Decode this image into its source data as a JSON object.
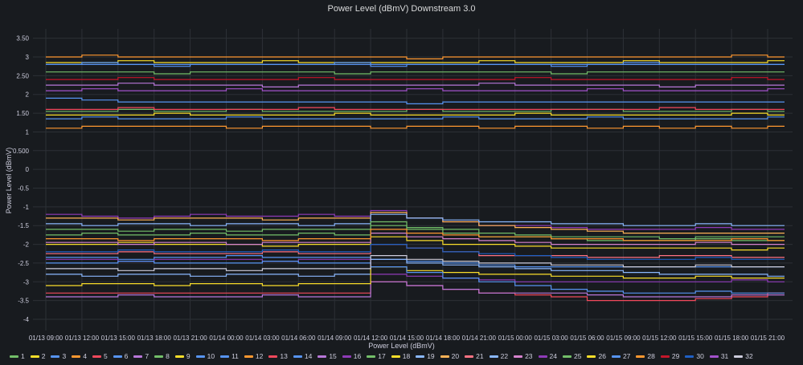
{
  "chart_data": {
    "type": "line",
    "title": "Power Level (dBmV) Downstream 3.0",
    "ylabel": "Power Level (dBmV)",
    "xlabel": "Power Level (dBmV)",
    "ylim": [
      -4.3,
      3.75
    ],
    "yticks": [
      "3.50",
      "3",
      "2.50",
      "2",
      "1.50",
      "1",
      "0.500",
      "0",
      "-0.5",
      "-1",
      "-1.5",
      "-2",
      "-2.5",
      "-3",
      "-3.5",
      "-4"
    ],
    "ytick_values": [
      3.5,
      3,
      2.5,
      2,
      1.5,
      1,
      0.5,
      0,
      -0.5,
      -1,
      -1.5,
      -2,
      -2.5,
      -3,
      -3.5,
      -4
    ],
    "xticks": [
      "01/13 09:00",
      "01/13 12:00",
      "01/13 15:00",
      "01/13 18:00",
      "01/13 21:00",
      "01/14 00:00",
      "01/14 03:00",
      "01/14 06:00",
      "01/14 09:00",
      "01/14 12:00",
      "01/14 15:00",
      "01/14 18:00",
      "01/14 21:00",
      "01/15 00:00",
      "01/15 03:00",
      "01/15 06:00",
      "01/15 09:00",
      "01/15 12:00",
      "01/15 15:00",
      "01/15 18:00",
      "01/15 21:00"
    ],
    "grid": true,
    "legend_position": "bottom",
    "series": [
      {
        "name": "1",
        "color": "#73bf69",
        "values": [
          1.55,
          1.55,
          1.6,
          1.55,
          1.55,
          1.6,
          1.55,
          1.55,
          1.55,
          1.55,
          1.6,
          1.55,
          1.55,
          1.55,
          1.6,
          1.6,
          1.55,
          1.55,
          1.55,
          1.6,
          1.55
        ]
      },
      {
        "name": "2",
        "color": "#fade2a",
        "values": [
          2.85,
          2.85,
          2.9,
          2.85,
          2.85,
          2.85,
          2.9,
          2.85,
          2.85,
          2.85,
          2.85,
          2.85,
          2.9,
          2.85,
          2.85,
          2.85,
          2.9,
          2.85,
          2.85,
          2.85,
          2.9
        ]
      },
      {
        "name": "3",
        "color": "#5794f2",
        "values": [
          2.8,
          2.8,
          2.8,
          2.75,
          2.8,
          2.8,
          2.8,
          2.8,
          2.8,
          2.75,
          2.8,
          2.8,
          2.8,
          2.8,
          2.75,
          2.8,
          2.8,
          2.8,
          2.8,
          2.8,
          2.8
        ]
      },
      {
        "name": "4",
        "color": "#ff9830",
        "values": [
          3.0,
          3.05,
          3.0,
          3.0,
          3.0,
          3.0,
          3.0,
          3.0,
          3.0,
          3.0,
          2.95,
          3.0,
          3.0,
          3.0,
          3.0,
          3.0,
          3.0,
          3.0,
          3.0,
          3.05,
          3.0
        ]
      },
      {
        "name": "5",
        "color": "#f2495c",
        "values": [
          1.6,
          1.6,
          1.65,
          1.6,
          1.6,
          1.6,
          1.6,
          1.65,
          1.6,
          1.6,
          1.6,
          1.6,
          1.6,
          1.6,
          1.6,
          1.6,
          1.6,
          1.65,
          1.6,
          1.6,
          1.6
        ]
      },
      {
        "name": "6",
        "color": "#5794f2",
        "values": [
          1.35,
          1.4,
          1.35,
          1.35,
          1.35,
          1.4,
          1.35,
          1.35,
          1.35,
          1.35,
          1.35,
          1.4,
          1.35,
          1.35,
          1.35,
          1.4,
          1.35,
          1.35,
          1.35,
          1.35,
          1.4
        ]
      },
      {
        "name": "7",
        "color": "#b877d9",
        "values": [
          2.25,
          2.25,
          2.3,
          2.25,
          2.25,
          2.25,
          2.2,
          2.25,
          2.25,
          2.25,
          2.25,
          2.25,
          2.3,
          2.25,
          2.25,
          2.25,
          2.25,
          2.2,
          2.25,
          2.25,
          2.25
        ]
      },
      {
        "name": "8",
        "color": "#73bf69",
        "values": [
          2.6,
          2.6,
          2.6,
          2.55,
          2.6,
          2.6,
          2.6,
          2.6,
          2.55,
          2.6,
          2.6,
          2.6,
          2.6,
          2.6,
          2.55,
          2.6,
          2.6,
          2.6,
          2.6,
          2.6,
          2.6
        ]
      },
      {
        "name": "9",
        "color": "#fade2a",
        "values": [
          1.45,
          1.45,
          1.45,
          1.5,
          1.45,
          1.45,
          1.45,
          1.45,
          1.5,
          1.45,
          1.45,
          1.45,
          1.45,
          1.5,
          1.45,
          1.45,
          1.45,
          1.45,
          1.45,
          1.5,
          1.45
        ]
      },
      {
        "name": "10",
        "color": "#5794f2",
        "values": [
          1.9,
          1.85,
          1.8,
          1.8,
          1.8,
          1.8,
          1.8,
          1.8,
          1.8,
          1.8,
          1.75,
          1.8,
          1.8,
          1.8,
          1.8,
          1.8,
          1.8,
          1.8,
          1.8,
          1.8,
          1.8
        ]
      },
      {
        "name": "11",
        "color": "#5794f2",
        "values": [
          2.8,
          2.85,
          2.8,
          2.8,
          2.8,
          2.8,
          2.8,
          2.8,
          2.85,
          2.8,
          2.8,
          2.8,
          2.8,
          2.8,
          2.8,
          2.8,
          2.85,
          2.8,
          2.8,
          2.8,
          2.8
        ]
      },
      {
        "name": "12",
        "color": "#ff9830",
        "values": [
          1.1,
          1.15,
          1.15,
          1.15,
          1.15,
          1.1,
          1.15,
          1.15,
          1.15,
          1.1,
          1.15,
          1.15,
          1.1,
          1.15,
          1.15,
          1.1,
          1.15,
          1.1,
          1.15,
          1.1,
          1.15
        ]
      },
      {
        "name": "13",
        "color": "#f2495c",
        "values": [
          -3.3,
          -3.3,
          -3.3,
          -3.3,
          -3.3,
          -3.3,
          -3.3,
          -3.3,
          -3.3,
          -3.0,
          -3.1,
          -3.2,
          -3.3,
          -3.35,
          -3.4,
          -3.5,
          -3.5,
          -3.5,
          -3.45,
          -3.4,
          -3.3
        ]
      },
      {
        "name": "14",
        "color": "#5794f2",
        "values": [
          -2.35,
          -2.35,
          -2.4,
          -2.35,
          -2.35,
          -2.3,
          -2.35,
          -2.35,
          -2.35,
          -2.4,
          -2.45,
          -2.5,
          -2.55,
          -2.6,
          -2.6,
          -2.6,
          -2.6,
          -2.6,
          -2.6,
          -2.6,
          -2.6
        ]
      },
      {
        "name": "15",
        "color": "#b877d9",
        "values": [
          -3.4,
          -3.4,
          -3.35,
          -3.4,
          -3.4,
          -3.4,
          -3.35,
          -3.4,
          -3.4,
          -3.0,
          -3.1,
          -3.2,
          -3.3,
          -3.3,
          -3.3,
          -3.35,
          -3.4,
          -3.4,
          -3.4,
          -3.35,
          -3.35
        ]
      },
      {
        "name": "16",
        "color": "#8f3bb8",
        "values": [
          -1.2,
          -1.25,
          -1.3,
          -1.25,
          -1.2,
          -1.25,
          -1.25,
          -1.2,
          -1.25,
          -1.1,
          -1.3,
          -1.4,
          -1.5,
          -1.5,
          -1.55,
          -1.6,
          -1.6,
          -1.6,
          -1.55,
          -1.6,
          -1.6
        ]
      },
      {
        "name": "17",
        "color": "#73bf69",
        "values": [
          -1.75,
          -1.7,
          -1.75,
          -1.75,
          -1.7,
          -1.75,
          -1.75,
          -1.7,
          -1.75,
          -1.5,
          -1.6,
          -1.7,
          -1.8,
          -1.8,
          -1.85,
          -1.9,
          -1.9,
          -1.9,
          -1.85,
          -1.9,
          -1.9
        ]
      },
      {
        "name": "18",
        "color": "#fade2a",
        "values": [
          -2.0,
          -2.0,
          -1.95,
          -2.0,
          -2.0,
          -2.0,
          -2.05,
          -2.0,
          -2.0,
          -1.8,
          -1.9,
          -2.0,
          -2.0,
          -2.05,
          -2.1,
          -2.1,
          -2.1,
          -2.1,
          -2.1,
          -2.15,
          -2.1
        ]
      },
      {
        "name": "19",
        "color": "#8ab8ff",
        "values": [
          -2.8,
          -2.85,
          -2.8,
          -2.8,
          -2.85,
          -2.8,
          -2.8,
          -2.85,
          -2.8,
          -2.4,
          -2.5,
          -2.55,
          -2.6,
          -2.65,
          -2.7,
          -2.7,
          -2.75,
          -2.8,
          -2.8,
          -2.8,
          -2.85
        ]
      },
      {
        "name": "20",
        "color": "#ffb357",
        "values": [
          -1.3,
          -1.3,
          -1.35,
          -1.3,
          -1.3,
          -1.3,
          -1.35,
          -1.3,
          -1.3,
          -1.15,
          -1.3,
          -1.4,
          -1.5,
          -1.55,
          -1.6,
          -1.65,
          -1.7,
          -1.7,
          -1.7,
          -1.7,
          -1.7
        ]
      },
      {
        "name": "21",
        "color": "#ff7383",
        "values": [
          -2.25,
          -2.25,
          -2.2,
          -2.25,
          -2.25,
          -2.25,
          -2.2,
          -2.25,
          -2.25,
          -2.0,
          -2.1,
          -2.2,
          -2.3,
          -2.3,
          -2.3,
          -2.35,
          -2.35,
          -2.3,
          -2.3,
          -2.35,
          -2.35
        ]
      },
      {
        "name": "22",
        "color": "#8ab8ff",
        "values": [
          -1.45,
          -1.5,
          -1.45,
          -1.45,
          -1.5,
          -1.45,
          -1.45,
          -1.5,
          -1.45,
          -1.2,
          -1.3,
          -1.35,
          -1.4,
          -1.4,
          -1.45,
          -1.45,
          -1.5,
          -1.5,
          -1.45,
          -1.5,
          -1.5
        ]
      },
      {
        "name": "23",
        "color": "#d683ce",
        "values": [
          -1.95,
          -1.95,
          -2.0,
          -1.95,
          -1.95,
          -2.0,
          -1.95,
          -1.95,
          -1.95,
          -1.7,
          -1.8,
          -1.85,
          -1.9,
          -1.95,
          -2.0,
          -2.0,
          -2.0,
          -2.0,
          -1.95,
          -2.0,
          -2.0
        ]
      },
      {
        "name": "24",
        "color": "#8f3bb8",
        "values": [
          -2.4,
          -2.4,
          -2.45,
          -2.4,
          -2.4,
          -2.4,
          -2.45,
          -2.4,
          -2.4,
          -2.8,
          -2.85,
          -2.9,
          -2.95,
          -3.0,
          -3.0,
          -3.0,
          -3.0,
          -3.0,
          -3.0,
          -2.95,
          -3.0
        ]
      },
      {
        "name": "25",
        "color": "#73bf69",
        "values": [
          -1.6,
          -1.6,
          -1.65,
          -1.6,
          -1.6,
          -1.65,
          -1.6,
          -1.6,
          -1.6,
          -1.4,
          -1.55,
          -1.6,
          -1.7,
          -1.75,
          -1.8,
          -1.8,
          -1.8,
          -1.85,
          -1.8,
          -1.8,
          -1.8
        ]
      },
      {
        "name": "26",
        "color": "#fade2a",
        "values": [
          -3.1,
          -3.05,
          -3.05,
          -3.1,
          -3.05,
          -3.05,
          -3.1,
          -3.05,
          -3.05,
          -2.6,
          -2.7,
          -2.75,
          -2.8,
          -2.8,
          -2.85,
          -2.85,
          -2.9,
          -2.9,
          -2.85,
          -2.9,
          -2.9
        ]
      },
      {
        "name": "27",
        "color": "#5794f2",
        "values": [
          -2.5,
          -2.5,
          -2.45,
          -2.5,
          -2.5,
          -2.5,
          -2.45,
          -2.5,
          -2.5,
          -2.6,
          -2.75,
          -2.9,
          -3.0,
          -3.1,
          -3.2,
          -3.25,
          -3.3,
          -3.3,
          -3.25,
          -3.3,
          -3.3
        ]
      },
      {
        "name": "28",
        "color": "#ff9830",
        "values": [
          -1.85,
          -1.85,
          -1.9,
          -1.85,
          -1.85,
          -1.85,
          -1.9,
          -1.85,
          -1.85,
          -1.6,
          -1.7,
          -1.75,
          -1.8,
          -1.8,
          -1.85,
          -1.85,
          -1.9,
          -1.9,
          -1.9,
          -1.85,
          -1.9
        ]
      },
      {
        "name": "29",
        "color": "#c4162a",
        "values": [
          2.4,
          2.4,
          2.45,
          2.4,
          2.4,
          2.4,
          2.4,
          2.45,
          2.4,
          2.4,
          2.4,
          2.4,
          2.4,
          2.45,
          2.4,
          2.4,
          2.4,
          2.4,
          2.4,
          2.45,
          2.4
        ]
      },
      {
        "name": "30",
        "color": "#1f60c4",
        "values": [
          -2.2,
          -2.2,
          -2.15,
          -2.2,
          -2.2,
          -2.2,
          -2.15,
          -2.2,
          -2.2,
          -2.0,
          -2.1,
          -2.2,
          -2.25,
          -2.3,
          -2.35,
          -2.4,
          -2.4,
          -2.4,
          -2.35,
          -2.4,
          -2.4
        ]
      },
      {
        "name": "31",
        "color": "#a352cc",
        "values": [
          2.1,
          2.15,
          2.1,
          2.1,
          2.1,
          2.15,
          2.1,
          2.1,
          2.1,
          2.1,
          2.15,
          2.1,
          2.1,
          2.1,
          2.1,
          2.15,
          2.1,
          2.1,
          2.1,
          2.1,
          2.15
        ]
      },
      {
        "name": "32",
        "color": "#ccccdc",
        "values": [
          -2.65,
          -2.65,
          -2.7,
          -2.65,
          -2.65,
          -2.7,
          -2.65,
          -2.65,
          -2.65,
          -2.3,
          -2.4,
          -2.45,
          -2.5,
          -2.5,
          -2.55,
          -2.55,
          -2.6,
          -2.6,
          -2.55,
          -2.6,
          -2.6
        ]
      }
    ]
  }
}
